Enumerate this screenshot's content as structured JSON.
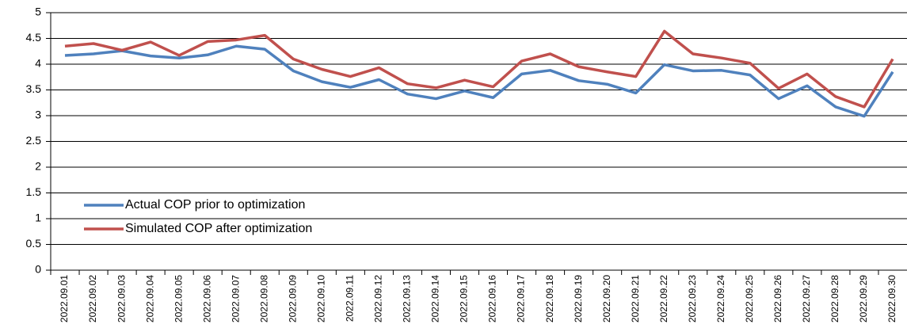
{
  "chart_data": {
    "type": "line",
    "categories": [
      "2022.09.01",
      "2022.09.02",
      "2022.09.03",
      "2022.09.04",
      "2022.09.05",
      "2022.09.06",
      "2022.09.07",
      "2022.09.08",
      "2022.09.09",
      "2022.09.10",
      "2022.09.11",
      "2022.09.12",
      "2022.09.13",
      "2022.09.14",
      "2022.09.15",
      "2022.09.16",
      "2022.09.17",
      "2022.09.18",
      "2022.09.19",
      "2022.09.20",
      "2022.09.21",
      "2022.09.22",
      "2022.09.23",
      "2022.09.24",
      "2022.09.25",
      "2022.09.26",
      "2022.09.27",
      "2022.09.28",
      "2022.09.29",
      "2022.09.30"
    ],
    "series": [
      {
        "name": "Actual COP prior to optimization",
        "color": "#4f81bd",
        "values": [
          4.17,
          4.2,
          4.26,
          4.16,
          4.12,
          4.18,
          4.35,
          4.29,
          3.87,
          3.66,
          3.55,
          3.7,
          3.42,
          3.33,
          3.48,
          3.35,
          3.81,
          3.88,
          3.68,
          3.61,
          3.44,
          3.99,
          3.87,
          3.88,
          3.79,
          3.33,
          3.58,
          3.17,
          2.99,
          3.85
        ]
      },
      {
        "name": "Simulated COP after optimization",
        "color": "#c0504d",
        "values": [
          4.35,
          4.4,
          4.27,
          4.43,
          4.17,
          4.44,
          4.47,
          4.56,
          4.1,
          3.9,
          3.76,
          3.93,
          3.62,
          3.54,
          3.69,
          3.56,
          4.06,
          4.2,
          3.95,
          3.85,
          3.76,
          4.64,
          4.2,
          4.12,
          4.02,
          3.53,
          3.81,
          3.37,
          3.17,
          4.1
        ]
      }
    ],
    "ylim": [
      0,
      5
    ],
    "yticks": [
      0,
      0.5,
      1,
      1.5,
      2,
      2.5,
      3,
      3.5,
      4,
      4.5,
      5
    ],
    "grid": true,
    "legend": "lower left"
  }
}
